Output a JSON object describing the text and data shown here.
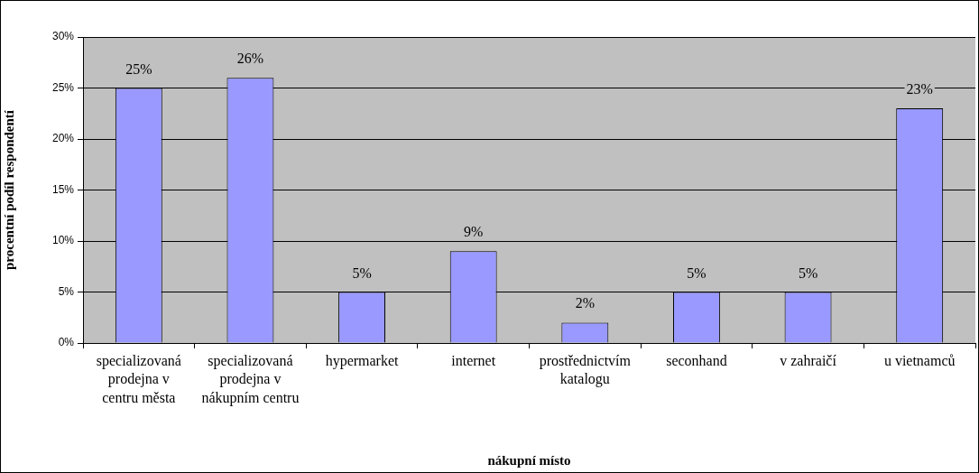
{
  "chart_data": {
    "type": "bar",
    "xlabel": "nákupní místo",
    "ylabel": "procentní podíl respondentí",
    "categories": [
      "specializovaná prodejna v centru města",
      "specializovaná prodejna v nákupním centru",
      "hypermarket",
      "internet",
      "prostřednictvím katalogu",
      "seconhand",
      "v zahraičí",
      "u vietnamců"
    ],
    "values": [
      25,
      26,
      5,
      9,
      2,
      5,
      5,
      23
    ],
    "value_labels": [
      "25%",
      "26%",
      "5%",
      "9%",
      "2%",
      "5%",
      "5%",
      "23%"
    ],
    "color": "#9999ff",
    "ylim": [
      0,
      30
    ],
    "yticks": [
      {
        "value": 0,
        "label": "0%"
      },
      {
        "value": 5,
        "label": "5%"
      },
      {
        "value": 10,
        "label": "10%"
      },
      {
        "value": 15,
        "label": "15%"
      },
      {
        "value": 20,
        "label": "20%"
      },
      {
        "value": 25,
        "label": "25%"
      },
      {
        "value": 30,
        "label": "30%"
      }
    ],
    "grid": "y"
  }
}
